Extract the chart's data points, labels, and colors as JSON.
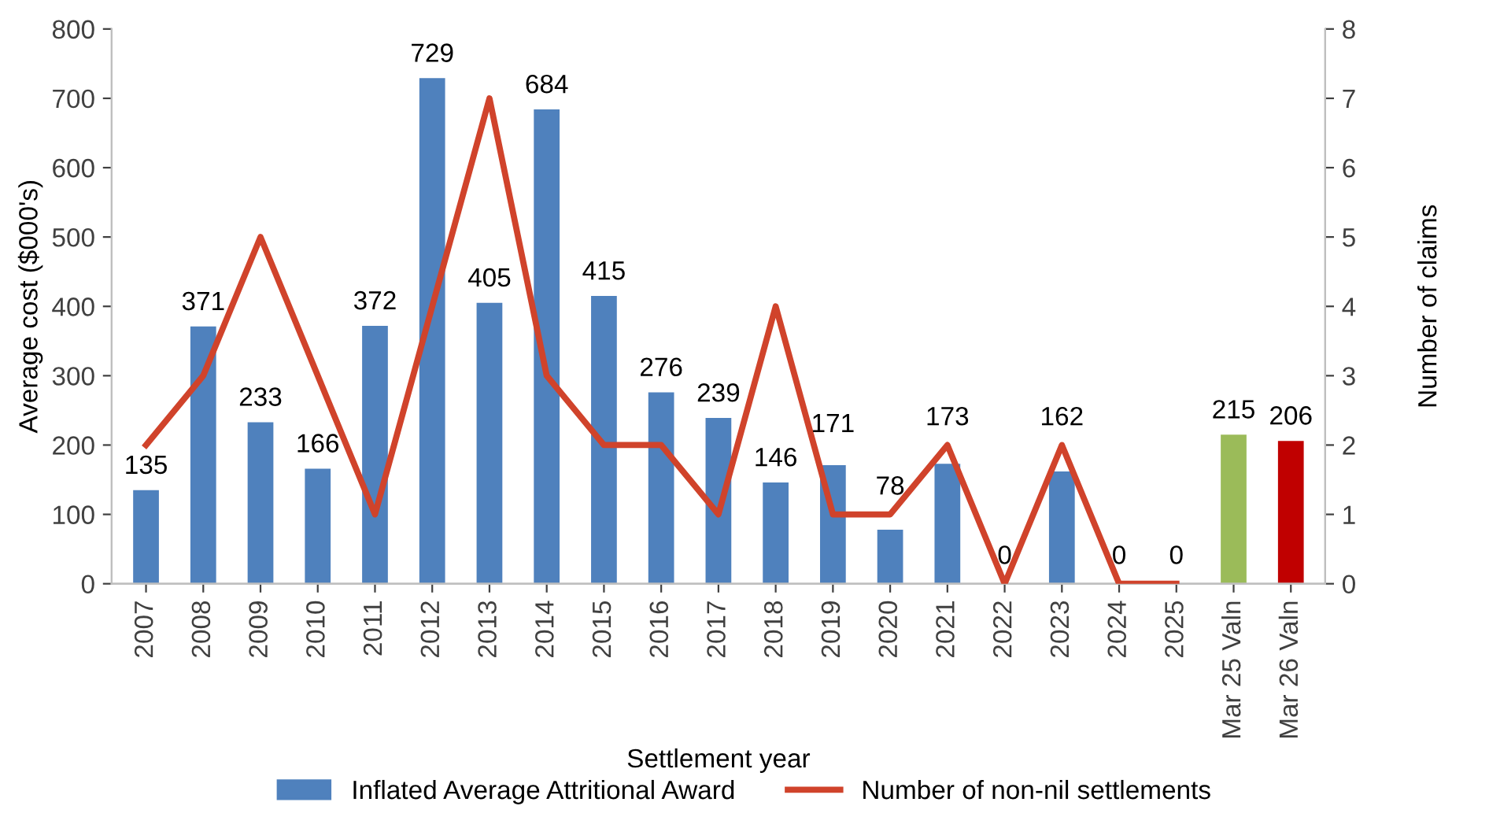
{
  "chart_data": {
    "type": "bar",
    "categories": [
      "2007",
      "2008",
      "2009",
      "2010",
      "2011",
      "2012",
      "2013",
      "2014",
      "2015",
      "2016",
      "2017",
      "2018",
      "2019",
      "2020",
      "2021",
      "2022",
      "2023",
      "2024",
      "2025",
      "Mar 25 Valn",
      "Mar 26 Valn"
    ],
    "xlabel": "Settlement year",
    "ylabel": "Average cost ($000's)",
    "y2label": "Number of claims",
    "ylim": [
      0,
      800
    ],
    "yticks": [
      0,
      100,
      200,
      300,
      400,
      500,
      600,
      700,
      800
    ],
    "y2lim": [
      0,
      8
    ],
    "y2ticks": [
      0,
      1,
      2,
      3,
      4,
      5,
      6,
      7,
      8
    ],
    "grid": false,
    "legend": "bottom",
    "series": [
      {
        "name": "Inflated Average Attritional Award",
        "type": "bar",
        "color": "#4f81bd",
        "colors": [
          "#4f81bd",
          "#4f81bd",
          "#4f81bd",
          "#4f81bd",
          "#4f81bd",
          "#4f81bd",
          "#4f81bd",
          "#4f81bd",
          "#4f81bd",
          "#4f81bd",
          "#4f81bd",
          "#4f81bd",
          "#4f81bd",
          "#4f81bd",
          "#4f81bd",
          "#4f81bd",
          "#4f81bd",
          "#4f81bd",
          "#4f81bd",
          "#9bbb59",
          "#c00000"
        ],
        "values": [
          135,
          371,
          233,
          166,
          372,
          729,
          405,
          684,
          415,
          276,
          239,
          146,
          171,
          78,
          173,
          0,
          162,
          0,
          0,
          215,
          206
        ],
        "value_labels": [
          "135",
          "371",
          "233",
          "166",
          "372",
          "729",
          "405",
          "684",
          "415",
          "276",
          "239",
          "146",
          "171",
          "78",
          "173",
          "0",
          "162",
          "0",
          "0",
          "215",
          "206"
        ]
      },
      {
        "name": "Number of non-nil settlements",
        "type": "line",
        "axis": "y2",
        "color": "#d0432b",
        "values": [
          2,
          3,
          5,
          3,
          1,
          4,
          7,
          3,
          2,
          2,
          1,
          4,
          1,
          1,
          2,
          0,
          2,
          0,
          0,
          null,
          null
        ]
      }
    ]
  }
}
